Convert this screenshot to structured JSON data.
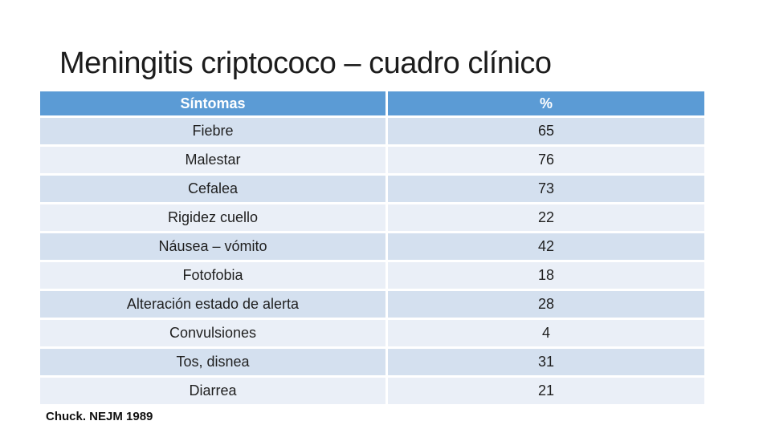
{
  "slide": {
    "title": "Meningitis criptococo – cuadro clínico",
    "citation": "Chuck. NEJM 1989"
  },
  "table": {
    "headers": {
      "symptom": "Síntomas",
      "pct": "%"
    },
    "rows": [
      {
        "symptom": "Fiebre",
        "pct": "65"
      },
      {
        "symptom": "Malestar",
        "pct": "76"
      },
      {
        "symptom": "Cefalea",
        "pct": "73"
      },
      {
        "symptom": "Rigidez cuello",
        "pct": "22"
      },
      {
        "symptom": "Náusea – vómito",
        "pct": "42"
      },
      {
        "symptom": "Fotofobia",
        "pct": "18"
      },
      {
        "symptom": "Alteración estado de alerta",
        "pct": "28"
      },
      {
        "symptom": "Convulsiones",
        "pct": "4"
      },
      {
        "symptom": "Tos, disnea",
        "pct": "31"
      },
      {
        "symptom": "Diarrea",
        "pct": "21"
      }
    ]
  },
  "colors": {
    "header_bg": "#5B9BD5",
    "header_text": "#FFFFFF",
    "band_dark": "#D4E0EF",
    "band_light": "#EAEFF7",
    "background": "#FFFFFF",
    "text": "#1F1F1F"
  }
}
